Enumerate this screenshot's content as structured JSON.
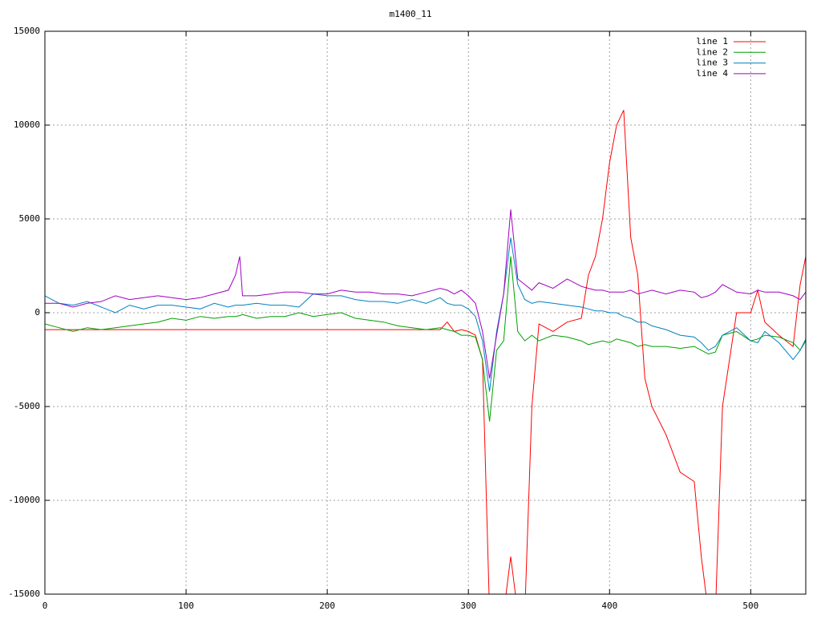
{
  "chart_data": {
    "type": "line",
    "title": "m1400_11",
    "x": [
      0,
      10,
      20,
      30,
      40,
      50,
      60,
      70,
      80,
      90,
      100,
      110,
      120,
      130,
      135,
      138,
      140,
      150,
      160,
      170,
      180,
      190,
      200,
      210,
      220,
      230,
      240,
      250,
      260,
      270,
      280,
      285,
      290,
      295,
      300,
      305,
      310,
      315,
      320,
      325,
      330,
      335,
      340,
      345,
      350,
      360,
      370,
      380,
      385,
      390,
      395,
      400,
      405,
      410,
      415,
      420,
      425,
      430,
      440,
      450,
      460,
      465,
      470,
      475,
      480,
      490,
      500,
      505,
      510,
      520,
      530,
      535,
      539
    ],
    "series": [
      {
        "name": "line 1",
        "color": "#ff0000",
        "values": [
          -900,
          -900,
          -900,
          -900,
          -900,
          -900,
          -900,
          -900,
          -900,
          -900,
          -900,
          -900,
          -900,
          -900,
          -900,
          -900,
          -900,
          -900,
          -900,
          -900,
          -900,
          -900,
          -900,
          -900,
          -900,
          -900,
          -900,
          -900,
          -900,
          -900,
          -900,
          -500,
          -1000,
          -900,
          -1000,
          -1200,
          -2500,
          -16000,
          -16000,
          -16000,
          -13000,
          -16000,
          -16000,
          -5000,
          -600,
          -1000,
          -500,
          -300,
          2000,
          3000,
          5000,
          8000,
          10000,
          10800,
          4000,
          2000,
          -3500,
          -5000,
          -6500,
          -8500,
          -9000,
          -13000,
          -16000,
          -16000,
          -5000,
          0,
          0,
          1200,
          -500,
          -1200,
          -1800,
          1500,
          3000
        ]
      },
      {
        "name": "line 2",
        "color": "#00a000",
        "values": [
          -600,
          -800,
          -1000,
          -800,
          -900,
          -800,
          -700,
          -600,
          -500,
          -300,
          -400,
          -200,
          -300,
          -200,
          -200,
          -150,
          -100,
          -300,
          -200,
          -200,
          0,
          -200,
          -100,
          0,
          -300,
          -400,
          -500,
          -700,
          -800,
          -900,
          -800,
          -900,
          -1000,
          -1200,
          -1200,
          -1300,
          -2500,
          -5800,
          -2000,
          -1500,
          3000,
          -1000,
          -1500,
          -1200,
          -1500,
          -1200,
          -1300,
          -1500,
          -1700,
          -1600,
          -1500,
          -1600,
          -1400,
          -1500,
          -1600,
          -1800,
          -1700,
          -1800,
          -1800,
          -1900,
          -1800,
          -2000,
          -2200,
          -2100,
          -1200,
          -1000,
          -1500,
          -1400,
          -1200,
          -1300,
          -1600,
          -2000,
          -1500
        ]
      },
      {
        "name": "line 3",
        "color": "#0080c0",
        "values": [
          900,
          500,
          400,
          600,
          300,
          0,
          400,
          200,
          400,
          400,
          300,
          200,
          500,
          300,
          400,
          400,
          400,
          500,
          400,
          400,
          300,
          1000,
          900,
          900,
          700,
          600,
          600,
          500,
          700,
          500,
          800,
          500,
          400,
          400,
          200,
          -200,
          -1500,
          -4200,
          -1000,
          1000,
          4000,
          1500,
          700,
          500,
          600,
          500,
          400,
          300,
          200,
          100,
          100,
          0,
          0,
          -200,
          -300,
          -500,
          -500,
          -700,
          -900,
          -1200,
          -1300,
          -1600,
          -2000,
          -1800,
          -1200,
          -800,
          -1500,
          -1600,
          -1000,
          -1600,
          -2500,
          -2000,
          -1400
        ]
      },
      {
        "name": "line 4",
        "color": "#a000c0",
        "values": [
          500,
          500,
          300,
          500,
          600,
          900,
          700,
          800,
          900,
          800,
          700,
          800,
          1000,
          1200,
          2000,
          3000,
          900,
          900,
          1000,
          1100,
          1100,
          1000,
          1000,
          1200,
          1100,
          1100,
          1000,
          1000,
          900,
          1100,
          1300,
          1200,
          1000,
          1200,
          900,
          500,
          -1000,
          -3500,
          -1200,
          1000,
          5500,
          1800,
          1500,
          1200,
          1600,
          1300,
          1800,
          1400,
          1300,
          1200,
          1200,
          1100,
          1100,
          1100,
          1200,
          1000,
          1100,
          1200,
          1000,
          1200,
          1100,
          800,
          900,
          1100,
          1500,
          1100,
          1000,
          1200,
          1100,
          1100,
          900,
          700,
          1100
        ]
      }
    ],
    "xlim": [
      0,
      539
    ],
    "ylim": [
      -15000,
      15000
    ],
    "xticks": [
      0,
      100,
      200,
      300,
      400,
      500
    ],
    "yticks": [
      -15000,
      -10000,
      -5000,
      0,
      5000,
      10000,
      15000
    ],
    "grid": true,
    "legend": "top-right"
  }
}
